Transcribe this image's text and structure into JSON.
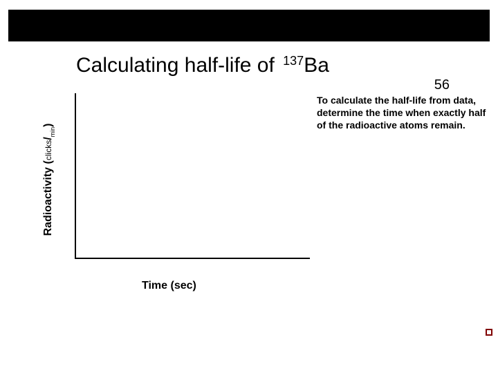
{
  "title": {
    "prefix": "Calculating half-life of ",
    "mass_number": "137",
    "element": "Ba",
    "atomic_number": "56",
    "fontsize": 30,
    "color": "#000000"
  },
  "chart": {
    "type": "line",
    "x_label": "Time (sec)",
    "y_label_main": "Radioactivity",
    "y_label_unit_top": "clicks",
    "y_label_unit_slash": "/",
    "y_label_unit_bot": "min",
    "y_label_paren_open": "(",
    "y_label_paren_close": ")",
    "axis_color": "#000000",
    "background_color": "#ffffff",
    "label_fontsize": 16
  },
  "description": {
    "text": "To calculate the half-life from data, determine the time when exactly half of the radioactive atoms remain.",
    "fontsize": 14,
    "color": "#000000"
  },
  "frame": {
    "border_color": "#000000",
    "fill_color": "#000000"
  },
  "marker": {
    "color": "#800000"
  }
}
